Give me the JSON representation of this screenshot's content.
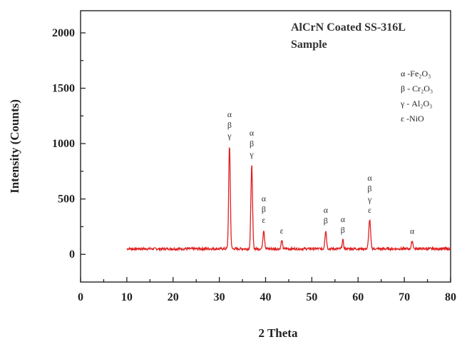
{
  "chart_data": {
    "type": "line",
    "title_lines": [
      "AlCrN Coated SS-316L",
      "Sample"
    ],
    "xlabel": "2 Theta",
    "ylabel": "Intensity (Counts)",
    "xlim": [
      0,
      80
    ],
    "ylim": [
      -250,
      2200
    ],
    "x_ticks": [
      0,
      10,
      20,
      30,
      40,
      50,
      60,
      70,
      80
    ],
    "y_ticks": [
      0,
      500,
      1000,
      1500,
      2000
    ],
    "grid": false,
    "line_color": "#e02020",
    "baseline": 50,
    "x_range": [
      10,
      80
    ],
    "peaks": [
      {
        "x": 32.2,
        "y": 980,
        "width": 0.35,
        "labels": [
          "α",
          "β",
          "γ"
        ]
      },
      {
        "x": 37.0,
        "y": 815,
        "width": 0.35,
        "labels": [
          "α",
          "β",
          "γ"
        ]
      },
      {
        "x": 39.6,
        "y": 220,
        "width": 0.35,
        "labels": [
          "α",
          "β",
          "ε"
        ]
      },
      {
        "x": 43.5,
        "y": 125,
        "width": 0.3,
        "labels": [
          "ε"
        ]
      },
      {
        "x": 53.0,
        "y": 215,
        "width": 0.35,
        "labels": [
          "α",
          "β"
        ]
      },
      {
        "x": 56.7,
        "y": 130,
        "width": 0.3,
        "labels": [
          "α",
          "β"
        ]
      },
      {
        "x": 62.5,
        "y": 310,
        "width": 0.4,
        "labels": [
          "α",
          "β",
          "γ",
          "ε"
        ]
      },
      {
        "x": 71.7,
        "y": 120,
        "width": 0.35,
        "labels": [
          "α"
        ]
      }
    ],
    "legend": [
      {
        "symbol": "α",
        "compound": "-Fe₂O₃"
      },
      {
        "symbol": "β",
        "compound": "- Cr₂O₃"
      },
      {
        "symbol": "γ",
        "compound": "- Al₂O₃"
      },
      {
        "symbol": "ε",
        "compound": "-NiO"
      }
    ]
  }
}
